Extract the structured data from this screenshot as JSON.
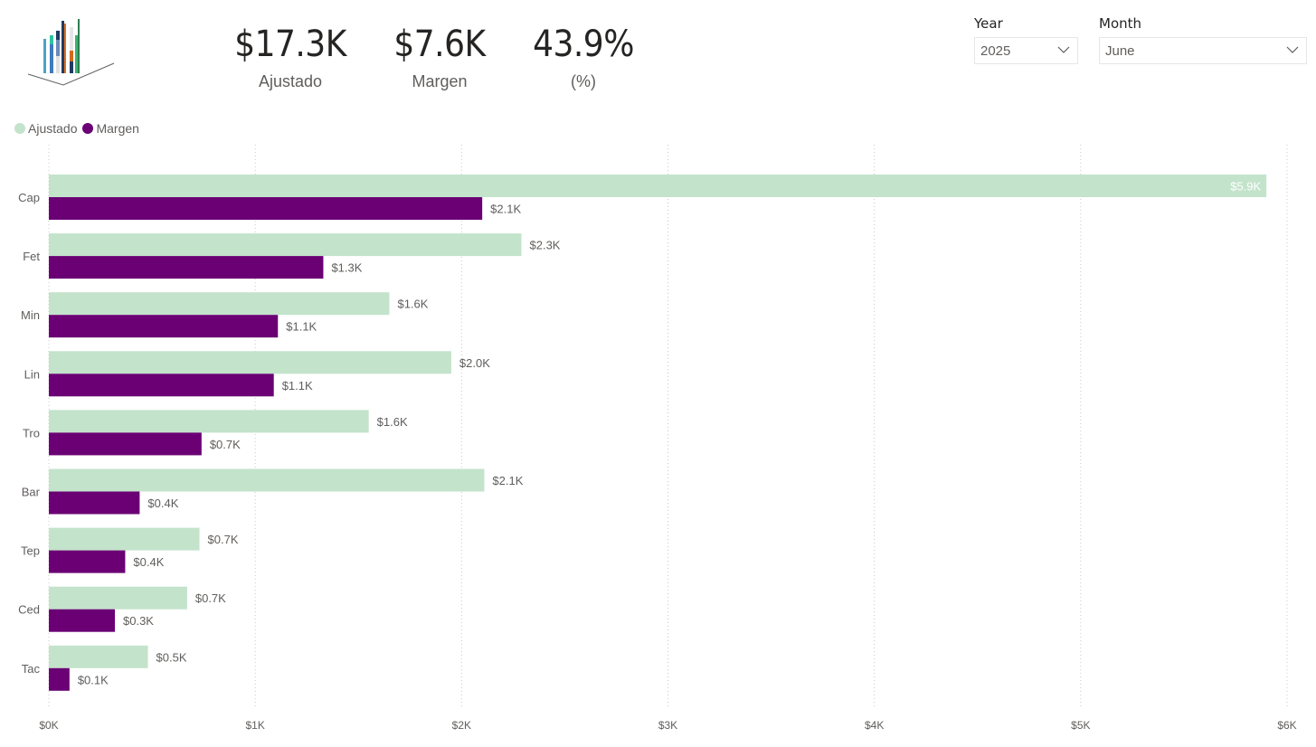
{
  "logo": {
    "icon": "bar-chart-logo-icon"
  },
  "kpis": [
    {
      "value": "$17.3K",
      "label": "Ajustado"
    },
    {
      "value": "$7.6K",
      "label": "Margen"
    },
    {
      "value": "43.9%",
      "label": "(%)"
    }
  ],
  "slicers": {
    "year": {
      "title": "Year",
      "selected": "2025"
    },
    "month": {
      "title": "Month",
      "selected": "June"
    }
  },
  "colors": {
    "ajustado": "#c3e3cb",
    "margen": "#6a0074",
    "axis_text": "#605e5c",
    "gridline": "#c8c8c8"
  },
  "chart_data": {
    "type": "bar",
    "orientation": "horizontal",
    "title": "",
    "xlabel": "",
    "ylabel": "",
    "categories": [
      "Cap",
      "Fet",
      "Min",
      "Lin",
      "Tro",
      "Bar",
      "Tep",
      "Ced",
      "Tac"
    ],
    "series": [
      {
        "name": "Ajustado",
        "color": "#c3e3cb",
        "values": [
          5.9,
          2.29,
          1.65,
          1.95,
          1.55,
          2.11,
          0.73,
          0.67,
          0.48
        ],
        "labels": [
          "$5.9K",
          "$2.3K",
          "$1.6K",
          "$2.0K",
          "$1.6K",
          "$2.1K",
          "$0.7K",
          "$0.7K",
          "$0.5K"
        ]
      },
      {
        "name": "Margen",
        "color": "#6a0074",
        "values": [
          2.1,
          1.33,
          1.11,
          1.09,
          0.74,
          0.44,
          0.37,
          0.32,
          0.1
        ],
        "labels": [
          "$2.1K",
          "$1.3K",
          "$1.1K",
          "$1.1K",
          "$0.7K",
          "$0.4K",
          "$0.4K",
          "$0.3K",
          "$0.1K"
        ]
      }
    ],
    "xlim": [
      0,
      6
    ],
    "x_unit": "thousands USD",
    "xticks": [
      0,
      1,
      2,
      3,
      4,
      5,
      6
    ],
    "xtick_labels": [
      "$0K",
      "$1K",
      "$2K",
      "$3K",
      "$4K",
      "$5K",
      "$6K"
    ],
    "grid": true,
    "legend": {
      "position": "top-left",
      "entries": [
        "Ajustado",
        "Margen"
      ]
    }
  }
}
